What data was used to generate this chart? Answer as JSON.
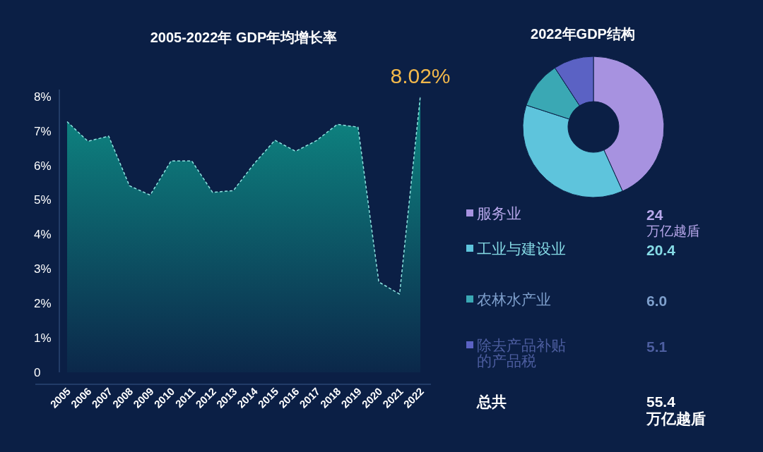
{
  "chart_data": [
    {
      "type": "area",
      "title": "2005-2022年 GDP年均增长率",
      "categories": [
        "2005",
        "2006",
        "2007",
        "2008",
        "2009",
        "2010",
        "2011",
        "2012",
        "2013",
        "2014",
        "2015",
        "2016",
        "2017",
        "2018",
        "2019",
        "2020",
        "2021",
        "2022"
      ],
      "series": [
        {
          "color": "#0e8a84",
          "values": [
            7.27,
            6.7,
            6.85,
            5.41,
            5.14,
            6.13,
            6.13,
            5.22,
            5.27,
            6.05,
            6.73,
            6.41,
            6.72,
            7.19,
            7.11,
            2.62,
            2.27,
            8.02
          ],
          "value_labels": [
            null,
            null,
            null,
            null,
            null,
            null,
            null,
            null,
            null,
            null,
            null,
            null,
            null,
            null,
            null,
            null,
            null,
            "8.02%"
          ]
        }
      ],
      "ylim": [
        0,
        8.2
      ],
      "yticks": [
        0,
        {
          "value": 1,
          "label": "1%"
        },
        {
          "value": 2,
          "label": "2%"
        },
        {
          "value": 3,
          "label": "3%"
        },
        {
          "value": 4,
          "label": "4%"
        },
        {
          "value": 5,
          "label": "5%"
        },
        {
          "value": 6,
          "label": "6%"
        },
        {
          "value": 7,
          "label": "7%"
        },
        {
          "value": 8,
          "label": "8%"
        }
      ],
      "line_style": "dashed",
      "marker": "none",
      "grid": false
    },
    {
      "type": "donut",
      "title": "2022年GDP结构",
      "categories": [
        "服务业",
        "工业与建设业",
        "农林水产业",
        "除去产品补贴的产品税"
      ],
      "values": [
        24,
        20.4,
        6.0,
        5.1
      ],
      "colors": [
        "#a792e0",
        "#5ec4dc",
        "#3aa8b4",
        "#5b62c4"
      ],
      "value_labels": [
        "24 万亿越盾",
        "20.4",
        "6.0",
        "5.1"
      ],
      "legend": "bottom",
      "annotations": [
        "总共",
        "55.4 万亿越盾"
      ]
    }
  ]
}
